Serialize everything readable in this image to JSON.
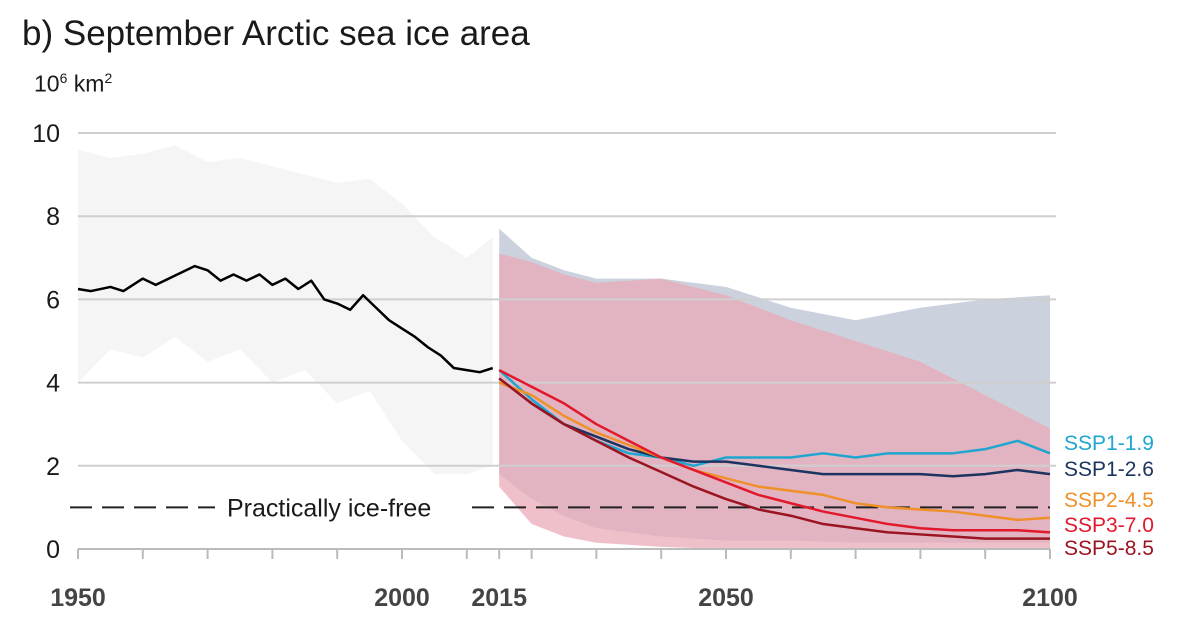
{
  "chart_data": {
    "type": "line",
    "title": "b) September Arctic sea ice area",
    "ylabel_base": "10",
    "ylabel_exp": "6",
    "ylabel_unit": "km",
    "ylabel_unit_exp": "2",
    "ylim": [
      0,
      10
    ],
    "xlim": [
      1950,
      2100
    ],
    "yticks": [
      0,
      2,
      4,
      6,
      8,
      10
    ],
    "xtick_labels": [
      1950,
      2000,
      2015,
      2050,
      2100
    ],
    "grid": true,
    "threshold": {
      "value": 1,
      "label": "Practically ice-free"
    },
    "historical": {
      "color": "#000000",
      "x": [
        1950,
        1952,
        1955,
        1957,
        1960,
        1962,
        1964,
        1966,
        1968,
        1970,
        1972,
        1974,
        1976,
        1978,
        1980,
        1982,
        1984,
        1986,
        1988,
        1990,
        1992,
        1994,
        1996,
        1998,
        2000,
        2002,
        2004,
        2006,
        2008,
        2010,
        2012,
        2014
      ],
      "y": [
        6.25,
        6.2,
        6.3,
        6.2,
        6.5,
        6.35,
        6.5,
        6.65,
        6.8,
        6.7,
        6.45,
        6.6,
        6.45,
        6.6,
        6.35,
        6.5,
        6.25,
        6.45,
        6.0,
        5.9,
        5.75,
        6.1,
        5.8,
        5.5,
        5.3,
        5.1,
        4.85,
        4.65,
        4.35,
        4.3,
        4.25,
        4.35
      ],
      "range": {
        "x": [
          1950,
          1955,
          1960,
          1965,
          1970,
          1975,
          1980,
          1985,
          1990,
          1995,
          2000,
          2005,
          2010,
          2014
        ],
        "upper": [
          9.6,
          9.4,
          9.5,
          9.7,
          9.3,
          9.4,
          9.2,
          9.0,
          8.8,
          8.9,
          8.3,
          7.5,
          7.0,
          7.5
        ],
        "lower": [
          4.0,
          4.8,
          4.6,
          5.1,
          4.5,
          4.8,
          4.0,
          4.3,
          3.5,
          3.8,
          2.6,
          1.8,
          1.8,
          2.0
        ],
        "color": "#f1f1f1"
      }
    },
    "x_future": [
      2015,
      2020,
      2025,
      2030,
      2035,
      2040,
      2045,
      2050,
      2055,
      2060,
      2065,
      2070,
      2075,
      2080,
      2085,
      2090,
      2095,
      2100
    ],
    "series": [
      {
        "name": "SSP1-1.9",
        "color": "#1ea6d0",
        "values": [
          4.3,
          3.6,
          3.0,
          2.6,
          2.3,
          2.2,
          2.0,
          2.2,
          2.2,
          2.2,
          2.3,
          2.2,
          2.3,
          2.3,
          2.3,
          2.4,
          2.6,
          2.3
        ]
      },
      {
        "name": "SSP1-2.6",
        "color": "#1d3461",
        "values": [
          4.1,
          3.5,
          3.0,
          2.7,
          2.4,
          2.2,
          2.1,
          2.1,
          2.0,
          1.9,
          1.8,
          1.8,
          1.8,
          1.8,
          1.75,
          1.8,
          1.9,
          1.8
        ]
      },
      {
        "name": "SSP2-4.5",
        "color": "#ef912a",
        "values": [
          4.0,
          3.7,
          3.2,
          2.8,
          2.5,
          2.2,
          1.9,
          1.7,
          1.5,
          1.4,
          1.3,
          1.1,
          1.0,
          0.95,
          0.9,
          0.8,
          0.7,
          0.75
        ]
      },
      {
        "name": "SSP3-7.0",
        "color": "#e2182c",
        "values": [
          4.3,
          3.9,
          3.5,
          3.0,
          2.6,
          2.2,
          1.9,
          1.6,
          1.3,
          1.1,
          0.9,
          0.75,
          0.6,
          0.5,
          0.45,
          0.45,
          0.45,
          0.4
        ]
      },
      {
        "name": "SSP5-8.5",
        "color": "#9b1420",
        "values": [
          4.1,
          3.5,
          3.0,
          2.6,
          2.2,
          1.85,
          1.5,
          1.2,
          0.95,
          0.8,
          0.6,
          0.5,
          0.4,
          0.35,
          0.3,
          0.25,
          0.25,
          0.25
        ]
      }
    ],
    "ranges": [
      {
        "name": "SSP1-2.6 range",
        "color": "#b9c3d3",
        "x": [
          2015,
          2020,
          2025,
          2030,
          2040,
          2050,
          2060,
          2070,
          2080,
          2090,
          2100
        ],
        "upper": [
          7.7,
          7.0,
          6.7,
          6.5,
          6.5,
          6.3,
          5.8,
          5.5,
          5.8,
          6.0,
          6.1
        ],
        "lower": [
          1.8,
          1.2,
          0.8,
          0.5,
          0.3,
          0.2,
          0.2,
          0.15,
          0.15,
          0.15,
          0.15
        ]
      },
      {
        "name": "SSP3-7.0 range",
        "color": "#e9aab8",
        "x": [
          2015,
          2020,
          2025,
          2030,
          2040,
          2050,
          2060,
          2070,
          2080,
          2090,
          2100
        ],
        "upper": [
          7.1,
          6.9,
          6.6,
          6.4,
          6.5,
          6.1,
          5.5,
          5.0,
          4.5,
          3.7,
          2.9
        ],
        "lower": [
          1.5,
          0.6,
          0.3,
          0.15,
          0.05,
          0,
          0,
          0,
          0,
          0,
          0
        ]
      }
    ]
  }
}
